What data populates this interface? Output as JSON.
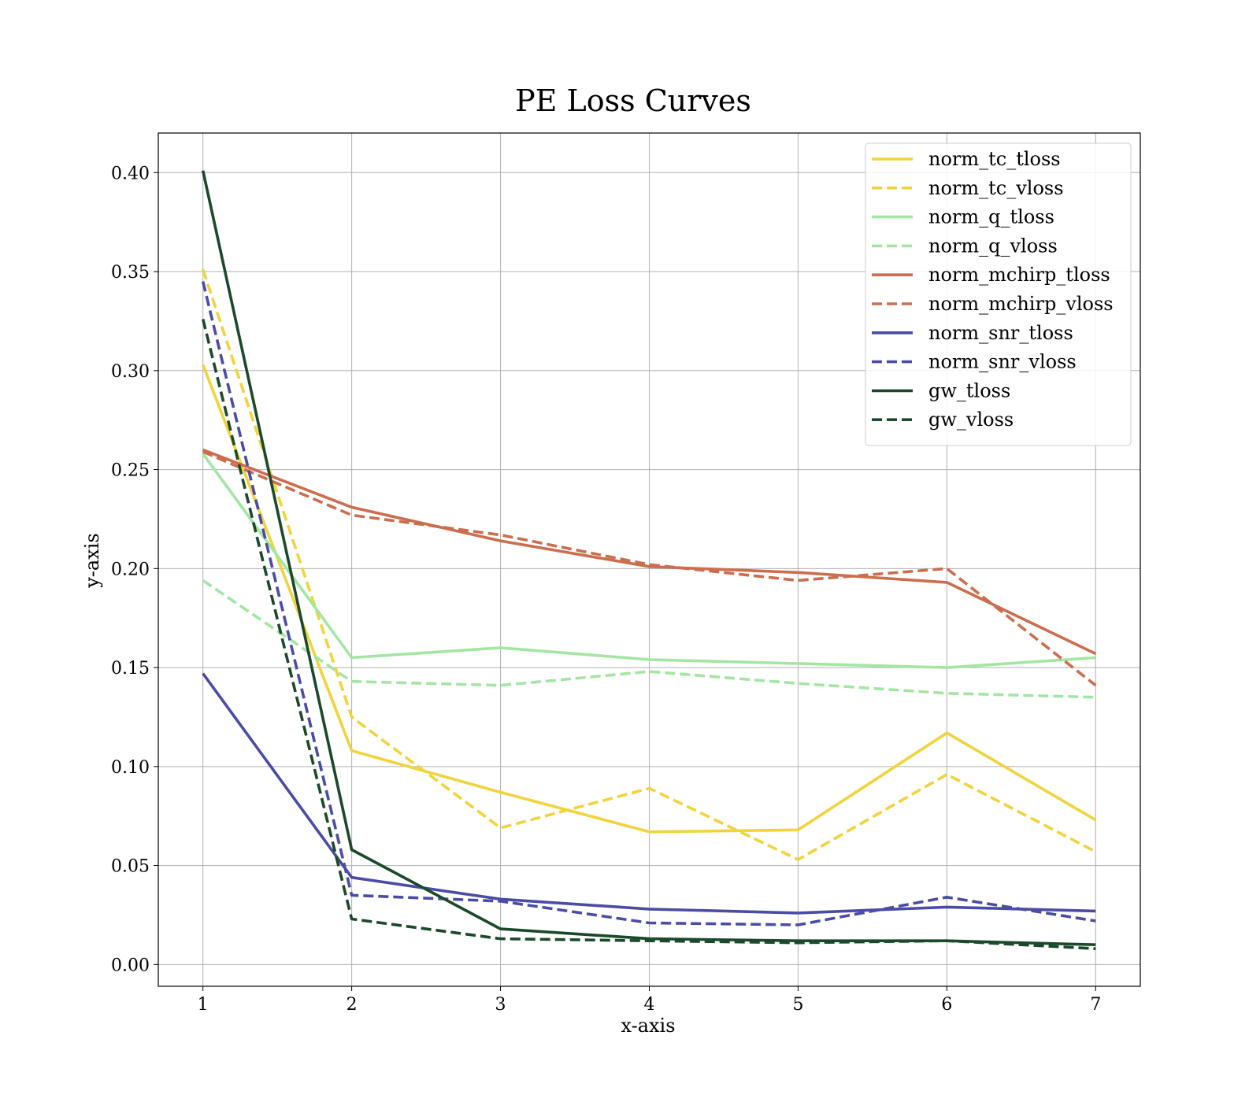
{
  "chart_data": {
    "type": "line",
    "title": "PE Loss Curves",
    "xlabel": "x-axis",
    "ylabel": "y-axis",
    "xlim": [
      0.7,
      7.3
    ],
    "ylim": [
      -0.011,
      0.42
    ],
    "x_ticks": [
      "1",
      "2",
      "3",
      "4",
      "5",
      "6",
      "7"
    ],
    "y_ticks": [
      "0.00",
      "0.05",
      "0.10",
      "0.15",
      "0.20",
      "0.25",
      "0.30",
      "0.35",
      "0.40"
    ],
    "grid": true,
    "legend_position": "top-right",
    "x": [
      1,
      2,
      3,
      4,
      5,
      6,
      7
    ],
    "series": [
      {
        "name": "norm_tc_tloss",
        "color": "#f2d33c",
        "dash": "solid",
        "values": [
          0.303,
          0.108,
          0.087,
          0.067,
          0.068,
          0.117,
          0.073
        ]
      },
      {
        "name": "norm_tc_vloss",
        "color": "#f2d33c",
        "dash": "dashed",
        "values": [
          0.351,
          0.125,
          0.069,
          0.089,
          0.053,
          0.096,
          0.057
        ]
      },
      {
        "name": "norm_q_tloss",
        "color": "#a3e6a3",
        "dash": "solid",
        "values": [
          0.258,
          0.155,
          0.16,
          0.154,
          0.152,
          0.15,
          0.155
        ]
      },
      {
        "name": "norm_q_vloss",
        "color": "#a3e6a3",
        "dash": "dashed",
        "values": [
          0.194,
          0.143,
          0.141,
          0.148,
          0.142,
          0.137,
          0.135
        ]
      },
      {
        "name": "norm_mchirp_tloss",
        "color": "#cc6e4e",
        "dash": "solid",
        "values": [
          0.26,
          0.231,
          0.214,
          0.201,
          0.198,
          0.193,
          0.157
        ]
      },
      {
        "name": "norm_mchirp_vloss",
        "color": "#cc6e4e",
        "dash": "dashed",
        "values": [
          0.259,
          0.227,
          0.217,
          0.202,
          0.194,
          0.2,
          0.141
        ]
      },
      {
        "name": "norm_snr_tloss",
        "color": "#4b4ca6",
        "dash": "solid",
        "values": [
          0.147,
          0.044,
          0.033,
          0.028,
          0.026,
          0.029,
          0.027
        ]
      },
      {
        "name": "norm_snr_vloss",
        "color": "#4b4ca6",
        "dash": "dashed",
        "values": [
          0.345,
          0.035,
          0.032,
          0.021,
          0.02,
          0.034,
          0.022
        ]
      },
      {
        "name": "gw_tloss",
        "color": "#1a4a2a",
        "dash": "solid",
        "values": [
          0.401,
          0.058,
          0.018,
          0.013,
          0.012,
          0.012,
          0.01
        ]
      },
      {
        "name": "gw_vloss",
        "color": "#1a4a2a",
        "dash": "dashed",
        "values": [
          0.326,
          0.023,
          0.013,
          0.012,
          0.011,
          0.012,
          0.008
        ]
      }
    ]
  }
}
